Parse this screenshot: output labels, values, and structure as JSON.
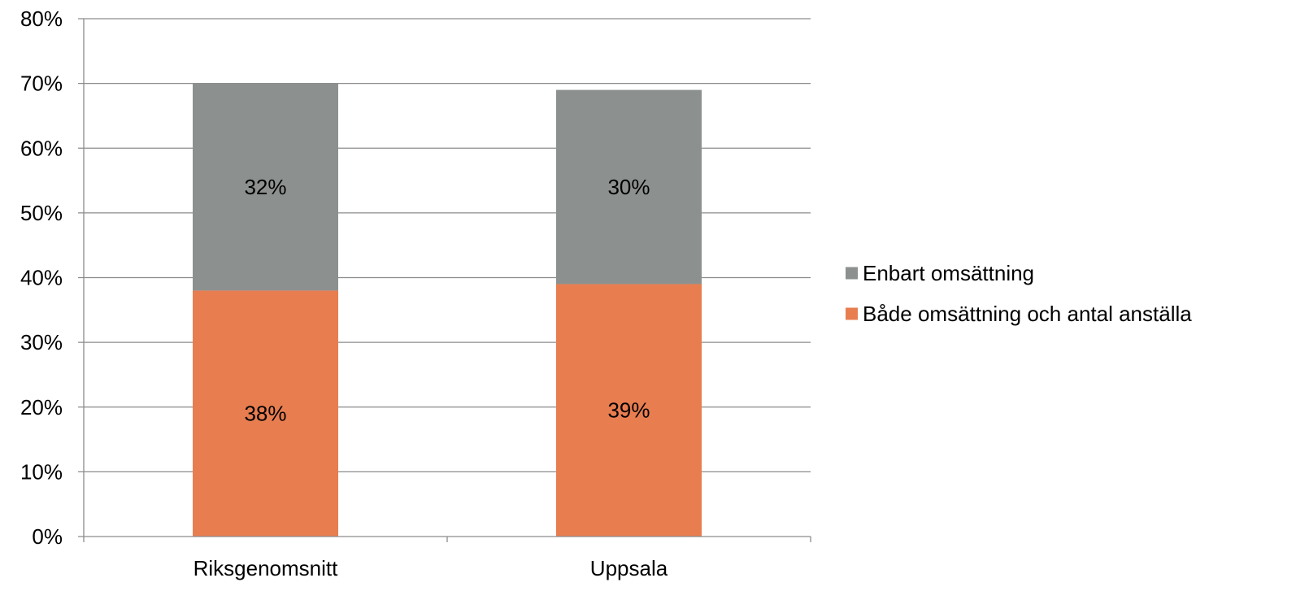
{
  "chart_data": {
    "type": "bar",
    "stacked": true,
    "categories": [
      "Riksgenomsnitt",
      "Uppsala"
    ],
    "series": [
      {
        "name": "Både omsättning och antal anställa",
        "values": [
          38,
          39
        ],
        "value_labels": [
          "38%",
          "39%"
        ],
        "color": "#E87D50"
      },
      {
        "name": "Enbart omsättning",
        "values": [
          32,
          30
        ],
        "value_labels": [
          "32%",
          "30%"
        ],
        "color": "#8C918F"
      }
    ],
    "ylim": [
      0,
      80
    ],
    "yticks": [
      0,
      10,
      20,
      30,
      40,
      50,
      60,
      70,
      80
    ],
    "ytick_labels": [
      "0%",
      "10%",
      "20%",
      "30%",
      "40%",
      "50%",
      "60%",
      "70%",
      "80%"
    ],
    "grid": true,
    "legend": {
      "position": "right",
      "entries": [
        "Enbart omsättning",
        "Både omsättning och antal anställa"
      ]
    },
    "title": "",
    "xlabel": "",
    "ylabel": ""
  }
}
